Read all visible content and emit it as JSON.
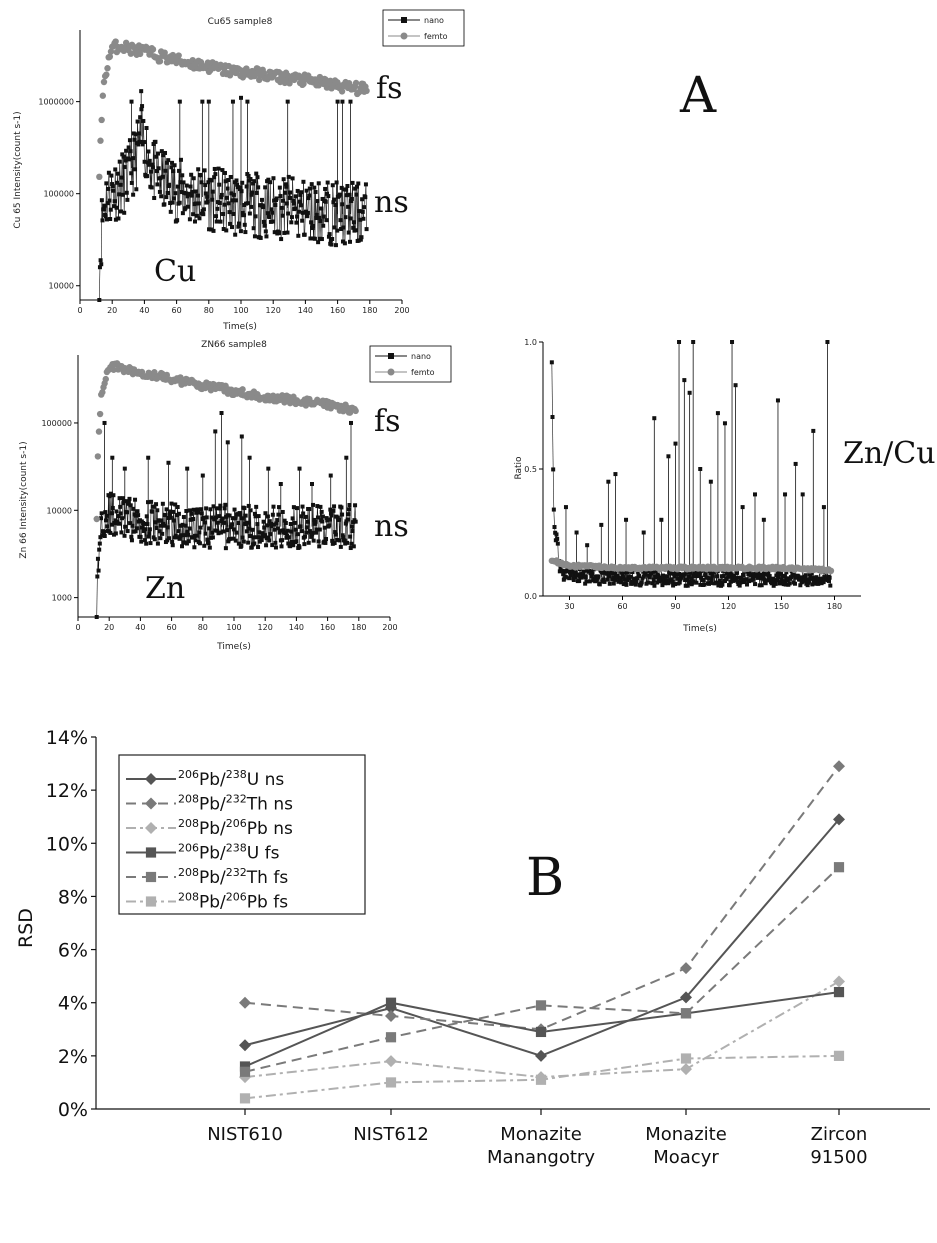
{
  "chart_data": [
    {
      "type": "scatter",
      "title": "Cu65 sample8",
      "xlabel": "Time(s)",
      "ylabel": "Cu 65 Intensity(count s-1)",
      "xlim": [
        0,
        200
      ],
      "ylim": [
        7000,
        6000000
      ],
      "yscale": "log",
      "x_ticks": [
        "0",
        "20",
        "40",
        "60",
        "80",
        "100",
        "120",
        "140",
        "160",
        "180",
        "200"
      ],
      "y_ticks": [
        "10000",
        "100000",
        "1000000"
      ],
      "legend_position": "top-right",
      "series": [
        {
          "name": "nano",
          "marker": "square",
          "color": "#111111",
          "points": [
            [
              12,
              9000
            ],
            [
              13,
              30000
            ],
            [
              14,
              60000
            ],
            [
              16,
              90000
            ],
            [
              20,
              110000
            ],
            [
              25,
              120000
            ],
            [
              30,
              150000
            ],
            [
              35,
              250000
            ],
            [
              38,
              420000
            ],
            [
              40,
              350000
            ],
            [
              45,
              180000
            ],
            [
              50,
              140000
            ],
            [
              60,
              110000
            ],
            [
              70,
              95000
            ],
            [
              80,
              90000
            ],
            [
              90,
              80000
            ],
            [
              100,
              75000
            ],
            [
              110,
              75000
            ],
            [
              120,
              70000
            ],
            [
              130,
              70000
            ],
            [
              140,
              65000
            ],
            [
              150,
              65000
            ],
            [
              160,
              60000
            ],
            [
              170,
              60000
            ],
            [
              178,
              60000
            ]
          ],
          "spikes": [
            [
              62,
              1000000
            ],
            [
              76,
              1000000
            ],
            [
              80,
              1000000
            ],
            [
              95,
              1000000
            ],
            [
              100,
              1100000
            ],
            [
              104,
              1000000
            ],
            [
              129,
              1000000
            ],
            [
              160,
              1000000
            ],
            [
              163,
              1000000
            ],
            [
              168,
              1000000
            ],
            [
              38,
              1300000
            ],
            [
              32,
              1000000
            ]
          ]
        },
        {
          "name": "femto",
          "marker": "circle",
          "color": "#8a8a8a",
          "points": [
            [
              12,
              150000
            ],
            [
              13,
              500000
            ],
            [
              15,
              1500000
            ],
            [
              18,
              3000000
            ],
            [
              20,
              3800000
            ],
            [
              25,
              4100000
            ],
            [
              30,
              3800000
            ],
            [
              40,
              3500000
            ],
            [
              50,
              3100000
            ],
            [
              60,
              2800000
            ],
            [
              70,
              2600000
            ],
            [
              80,
              2400000
            ],
            [
              90,
              2200000
            ],
            [
              100,
              2100000
            ],
            [
              110,
              2000000
            ],
            [
              120,
              1900000
            ],
            [
              130,
              1800000
            ],
            [
              140,
              1700000
            ],
            [
              150,
              1600000
            ],
            [
              160,
              1500000
            ],
            [
              170,
              1400000
            ],
            [
              178,
              1350000
            ]
          ]
        }
      ],
      "annotations": [
        "fs",
        "ns",
        "Cu"
      ]
    },
    {
      "type": "scatter",
      "title": "ZN66 sample8",
      "xlabel": "Time(s)",
      "ylabel": "Zn 66 Intensity(count s-1)",
      "xlim": [
        0,
        200
      ],
      "ylim": [
        600,
        600000
      ],
      "yscale": "log",
      "x_ticks": [
        "0",
        "20",
        "40",
        "60",
        "80",
        "100",
        "120",
        "140",
        "160",
        "180",
        "200"
      ],
      "y_ticks": [
        "1000",
        "10000",
        "100000"
      ],
      "legend_position": "top-right",
      "series": [
        {
          "name": "nano",
          "marker": "square",
          "color": "#111111",
          "points": [
            [
              12,
              700
            ],
            [
              13,
              2000
            ],
            [
              14,
              5000
            ],
            [
              16,
              9000
            ],
            [
              20,
              9000
            ],
            [
              30,
              8000
            ],
            [
              40,
              7500
            ],
            [
              50,
              7000
            ],
            [
              60,
              7000
            ],
            [
              70,
              6500
            ],
            [
              80,
              6500
            ],
            [
              90,
              6500
            ],
            [
              100,
              6500
            ],
            [
              110,
              6500
            ],
            [
              120,
              6500
            ],
            [
              130,
              6500
            ],
            [
              140,
              6500
            ],
            [
              150,
              6500
            ],
            [
              160,
              6500
            ],
            [
              170,
              6500
            ],
            [
              178,
              6500
            ]
          ],
          "spikes": [
            [
              17,
              100000
            ],
            [
              22,
              40000
            ],
            [
              30,
              30000
            ],
            [
              45,
              40000
            ],
            [
              58,
              35000
            ],
            [
              70,
              30000
            ],
            [
              80,
              25000
            ],
            [
              88,
              80000
            ],
            [
              92,
              130000
            ],
            [
              96,
              60000
            ],
            [
              105,
              70000
            ],
            [
              110,
              40000
            ],
            [
              122,
              30000
            ],
            [
              130,
              20000
            ],
            [
              142,
              30000
            ],
            [
              150,
              20000
            ],
            [
              162,
              25000
            ],
            [
              172,
              40000
            ],
            [
              175,
              100000
            ]
          ]
        },
        {
          "name": "femto",
          "marker": "circle",
          "color": "#8a8a8a",
          "points": [
            [
              12,
              8000
            ],
            [
              13,
              50000
            ],
            [
              15,
              200000
            ],
            [
              18,
              350000
            ],
            [
              22,
              450000
            ],
            [
              30,
              420000
            ],
            [
              40,
              380000
            ],
            [
              50,
              350000
            ],
            [
              60,
              320000
            ],
            [
              70,
              290000
            ],
            [
              80,
              270000
            ],
            [
              90,
              250000
            ],
            [
              100,
              230000
            ],
            [
              110,
              210000
            ],
            [
              120,
              200000
            ],
            [
              130,
              190000
            ],
            [
              140,
              180000
            ],
            [
              150,
              170000
            ],
            [
              160,
              160000
            ],
            [
              170,
              150000
            ],
            [
              178,
              140000
            ]
          ]
        }
      ],
      "annotations": [
        "fs",
        "ns",
        "Zn"
      ]
    },
    {
      "type": "scatter",
      "title": "",
      "xlabel": "Time(s)",
      "ylabel": "Ratio",
      "xlim": [
        15,
        195
      ],
      "ylim": [
        0,
        1.0
      ],
      "x_ticks": [
        "30",
        "60",
        "90",
        "120",
        "150",
        "180"
      ],
      "y_ticks": [
        "0.0",
        "0.5",
        "1.0"
      ],
      "series": [
        {
          "marker": "square",
          "color": "#111111",
          "points": [
            [
              20,
              0.95
            ],
            [
              21,
              0.35
            ],
            [
              22,
              0.25
            ],
            [
              25,
              0.1
            ],
            [
              30,
              0.08
            ],
            [
              60,
              0.07
            ],
            [
              90,
              0.07
            ],
            [
              120,
              0.07
            ],
            [
              150,
              0.07
            ],
            [
              178,
              0.07
            ]
          ],
          "spikes": [
            [
              28,
              0.35
            ],
            [
              34,
              0.25
            ],
            [
              40,
              0.2
            ],
            [
              48,
              0.28
            ],
            [
              52,
              0.45
            ],
            [
              56,
              0.48
            ],
            [
              62,
              0.3
            ],
            [
              72,
              0.25
            ],
            [
              78,
              0.7
            ],
            [
              82,
              0.3
            ],
            [
              86,
              0.55
            ],
            [
              90,
              0.6
            ],
            [
              92,
              1.0
            ],
            [
              95,
              0.85
            ],
            [
              98,
              0.8
            ],
            [
              100,
              1.0
            ],
            [
              104,
              0.5
            ],
            [
              110,
              0.45
            ],
            [
              114,
              0.72
            ],
            [
              118,
              0.68
            ],
            [
              122,
              1.0
            ],
            [
              124,
              0.83
            ],
            [
              128,
              0.35
            ],
            [
              135,
              0.4
            ],
            [
              140,
              0.3
            ],
            [
              148,
              0.77
            ],
            [
              152,
              0.4
            ],
            [
              158,
              0.52
            ],
            [
              162,
              0.4
            ],
            [
              168,
              0.65
            ],
            [
              174,
              0.35
            ],
            [
              176,
              1.0
            ]
          ]
        },
        {
          "marker": "circle",
          "color": "#8a8a8a",
          "points": [
            [
              20,
              0.14
            ],
            [
              30,
              0.12
            ],
            [
              60,
              0.11
            ],
            [
              90,
              0.11
            ],
            [
              120,
              0.11
            ],
            [
              150,
              0.11
            ],
            [
              178,
              0.1
            ]
          ]
        }
      ],
      "annotations": [
        "Zn/Cu"
      ]
    },
    {
      "type": "line",
      "title": "",
      "xlabel": "",
      "ylabel": "RSD",
      "ylim": [
        0,
        14
      ],
      "y_ticks": [
        "0%",
        "2%",
        "4%",
        "6%",
        "8%",
        "10%",
        "12%",
        "14%"
      ],
      "categories": [
        [
          "NIST610"
        ],
        [
          "NIST612"
        ],
        [
          "Monazite",
          "Manangotry"
        ],
        [
          "Monazite",
          "Moacyr"
        ],
        [
          "Zircon",
          "91500"
        ]
      ],
      "legend_position": "top-left",
      "series": [
        {
          "iso_a": "206",
          "el_a": "Pb/",
          "iso_b": "238",
          "el_b": "U ns",
          "marker": "diamond",
          "dash": "solid",
          "color": "#555555",
          "values": [
            2.4,
            3.8,
            2.0,
            4.2,
            10.9
          ]
        },
        {
          "iso_a": "208",
          "el_a": "Pb/",
          "iso_b": "232",
          "el_b": "Th ns",
          "marker": "diamond",
          "dash": "dash",
          "color": "#7a7a7a",
          "values": [
            4.0,
            3.5,
            3.0,
            5.3,
            12.9
          ]
        },
        {
          "iso_a": "208",
          "el_a": "Pb/",
          "iso_b": "206",
          "el_b": "Pb ns",
          "marker": "diamond",
          "dash": "dashdot",
          "color": "#b0b0b0",
          "values": [
            1.2,
            1.8,
            1.2,
            1.5,
            4.8
          ]
        },
        {
          "iso_a": "206",
          "el_a": "Pb/",
          "iso_b": "238",
          "el_b": "U fs",
          "marker": "square",
          "dash": "solid",
          "color": "#555555",
          "values": [
            1.6,
            4.0,
            2.9,
            3.6,
            4.4
          ]
        },
        {
          "iso_a": "208",
          "el_a": "Pb/",
          "iso_b": "232",
          "el_b": "Th fs",
          "marker": "square",
          "dash": "dash",
          "color": "#7a7a7a",
          "values": [
            1.4,
            2.7,
            3.9,
            3.6,
            9.1
          ]
        },
        {
          "iso_a": "208",
          "el_a": "Pb/",
          "iso_b": "206",
          "el_b": "Pb fs",
          "marker": "square",
          "dash": "dashdot",
          "color": "#b0b0b0",
          "values": [
            0.4,
            1.0,
            1.1,
            1.9,
            2.0
          ]
        }
      ],
      "annotations": [
        "B"
      ]
    }
  ],
  "panel_labels": {
    "a": "A"
  }
}
